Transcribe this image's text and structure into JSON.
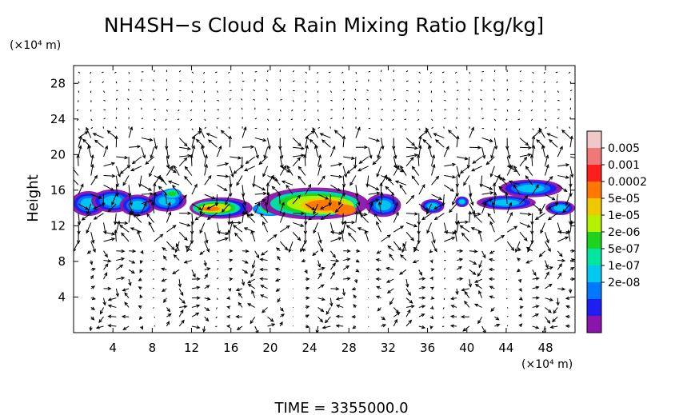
{
  "chart_data": {
    "type": "heatmap",
    "title": "NH4SH−s Cloud & Rain Mixing Ratio [kg/kg]",
    "ylabel": "Height",
    "y_unit": "(×10⁴ m)",
    "x_unit": "(×10⁴ m)",
    "xlim": [
      0,
      51
    ],
    "ylim": [
      0,
      30
    ],
    "x_ticks": [
      "4",
      "8",
      "12",
      "16",
      "20",
      "24",
      "28",
      "32",
      "36",
      "40",
      "44",
      "48"
    ],
    "x_tick_values": [
      4,
      8,
      12,
      16,
      20,
      24,
      28,
      32,
      36,
      40,
      44,
      48
    ],
    "y_ticks": [
      "4",
      "8",
      "12",
      "16",
      "20",
      "24",
      "28"
    ],
    "y_tick_values": [
      4,
      8,
      12,
      16,
      20,
      24,
      28
    ],
    "colorbar": {
      "labels": [
        "0.005",
        "0.001",
        "0.0002",
        "5e-05",
        "1e-05",
        "2e-06",
        "5e-07",
        "1e-07",
        "2e-08"
      ],
      "colors": [
        "#f0c8c8",
        "#f07878",
        "#ff1e1e",
        "#ff7800",
        "#f0c800",
        "#b4f000",
        "#1ed21e",
        "#00e6a0",
        "#00c8f0",
        "#0078ff",
        "#1e1ef0",
        "#8c14aa"
      ]
    },
    "cloud_cells": [
      {
        "x": 1.5,
        "y": 14.5,
        "rx": 1.8,
        "ry": 1.4,
        "level": 0
      },
      {
        "x": 4,
        "y": 14.8,
        "rx": 2.2,
        "ry": 1.3,
        "level": 0
      },
      {
        "x": 6.5,
        "y": 14.3,
        "rx": 1.8,
        "ry": 1.2,
        "level": 0
      },
      {
        "x": 9.5,
        "y": 14.8,
        "rx": 2.0,
        "ry": 1.2,
        "level": 0
      },
      {
        "x": 10,
        "y": 15.6,
        "rx": 1.0,
        "ry": 0.6,
        "level": 1
      },
      {
        "x": 15,
        "y": 14.0,
        "rx": 3.2,
        "ry": 1.2,
        "level": 0
      },
      {
        "x": 14.5,
        "y": 14.0,
        "rx": 2.4,
        "ry": 0.8,
        "level": 2
      },
      {
        "x": 14,
        "y": 13.9,
        "rx": 1.4,
        "ry": 0.4,
        "level": 3
      },
      {
        "x": 20,
        "y": 13.9,
        "rx": 1.8,
        "ry": 0.8,
        "level": 1
      },
      {
        "x": 24.5,
        "y": 14.5,
        "rx": 5.5,
        "ry": 1.8,
        "level": 0
      },
      {
        "x": 24.5,
        "y": 14.5,
        "rx": 4.5,
        "ry": 1.4,
        "level": 2
      },
      {
        "x": 25.5,
        "y": 14.3,
        "rx": 3.0,
        "ry": 1.0,
        "level": 3
      },
      {
        "x": 27.5,
        "y": 13.8,
        "rx": 1.2,
        "ry": 0.6,
        "level": 4
      },
      {
        "x": 31.5,
        "y": 14.3,
        "rx": 1.8,
        "ry": 1.3,
        "level": 0
      },
      {
        "x": 36.5,
        "y": 14.2,
        "rx": 1.2,
        "ry": 0.8,
        "level": 0
      },
      {
        "x": 39.5,
        "y": 14.7,
        "rx": 0.7,
        "ry": 0.6,
        "level": 0
      },
      {
        "x": 44,
        "y": 14.6,
        "rx": 3.0,
        "ry": 0.8,
        "level": 0
      },
      {
        "x": 46.5,
        "y": 16.2,
        "rx": 3.2,
        "ry": 1.0,
        "level": 0
      },
      {
        "x": 49.5,
        "y": 14.0,
        "rx": 1.5,
        "ry": 0.8,
        "level": 0
      }
    ],
    "time_label": "TIME  =  3355000.0"
  }
}
